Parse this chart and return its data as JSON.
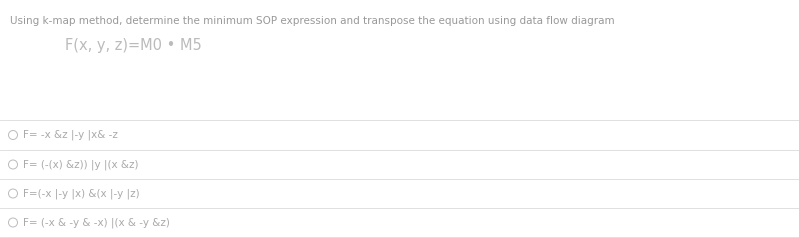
{
  "title": "Using k-map method, determine the minimum SOP expression and transpose the equation using data flow diagram",
  "formula": "F(x, y, z)=M0 • M5",
  "options": [
    "F= -x &z |-y |x& -z",
    "F= (-(x) &z)) |y |(x &z)",
    "F=(-x |-y |x) &(x |-y |z)",
    "F= (-x & -y & -x) |(x & -y &z)"
  ],
  "bg_color": "#ffffff",
  "title_color": "#999999",
  "formula_color": "#bbbbbb",
  "option_color": "#aaaaaa",
  "divider_color": "#e0e0e0",
  "circle_color": "#bbbbbb",
  "title_fontsize": 7.5,
  "formula_fontsize": 10.5,
  "option_fontsize": 7.5,
  "fig_width": 7.99,
  "fig_height": 2.38,
  "dpi": 100
}
